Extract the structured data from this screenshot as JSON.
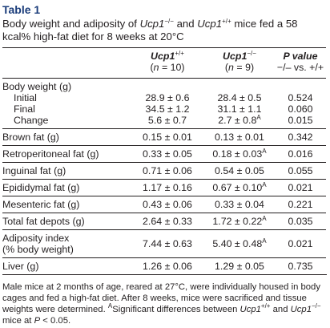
{
  "title": "Table 1",
  "caption": [
    "Body weight and adiposity of ",
    "Ucp1",
    "−/−",
    " and ",
    "Ucp1",
    "+/+",
    " mice fed a 58 kcal% high-fat diet for 8 weeks at 20°C"
  ],
  "columns": [
    {
      "name": "Ucp1",
      "sup": "+/+",
      "n": [
        "(",
        "n",
        " = 10)"
      ]
    },
    {
      "name": "Ucp1",
      "sup": "−/−",
      "n": [
        "(",
        "n",
        " = 9)"
      ]
    },
    {
      "name": "P value",
      "sub": "−/– vs. +/+"
    }
  ],
  "rows": [
    {
      "label": "Body weight (g)",
      "sub": [
        {
          "label": "Initial",
          "values": [
            "28.9 ± 0.6",
            "28.4 ± 0.5",
            "0.524"
          ]
        },
        {
          "label": "Final",
          "values": [
            "34.5 ± 1.2",
            "31.1 ± 1.1",
            "0.060"
          ]
        },
        {
          "label": "Change",
          "values": [
            "5.6 ± 0.7",
            {
              "text": "2.7 ± 0.8",
              "sup": "A"
            },
            "0.015"
          ]
        }
      ]
    },
    {
      "label": "Brown fat (g)",
      "values": [
        "0.15 ± 0.01",
        "0.13 ± 0.01",
        "0.342"
      ]
    },
    {
      "label": "Retroperitoneal fat (g)",
      "values": [
        "0.33 ± 0.05",
        {
          "text": "0.18 ± 0.03",
          "sup": "A"
        },
        "0.016"
      ]
    },
    {
      "label": "Inguinal fat (g)",
      "values": [
        "0.71 ± 0.06",
        "0.54 ± 0.05",
        "0.055"
      ]
    },
    {
      "label": "Epididymal fat (g)",
      "values": [
        "1.17 ± 0.16",
        {
          "text": "0.67 ± 0.10",
          "sup": "A"
        },
        "0.021"
      ]
    },
    {
      "label": "Mesenteric fat (g)",
      "values": [
        "0.43 ± 0.06",
        "0.33 ± 0.04",
        "0.221"
      ]
    },
    {
      "label": "Total fat depots (g)",
      "values": [
        "2.64 ± 0.33",
        {
          "text": "1.72 ± 0.22",
          "sup": "A"
        },
        "0.035"
      ]
    },
    {
      "label": "Adiposity index",
      "label_sub": "(% body weight)",
      "values": [
        "7.44 ± 0.63",
        {
          "text": "5.40 ± 0.48",
          "sup": "A"
        },
        "0.021"
      ]
    },
    {
      "label": "Liver (g)",
      "values": [
        "1.26 ± 0.06",
        "1.29 ± 0.05",
        "0.735"
      ]
    }
  ],
  "footnote": [
    "Male mice at 2 months of age, reared at 27°C, were individually housed in body cages and fed a high-fat diet. After 8 weeks, mice were sacrificed and tissue weights were determined. ",
    "A",
    "Significant differences between ",
    "Ucp1",
    "+/+",
    " and ",
    "Ucp1",
    "−/−",
    " mice at ",
    "P",
    " < 0.05."
  ]
}
